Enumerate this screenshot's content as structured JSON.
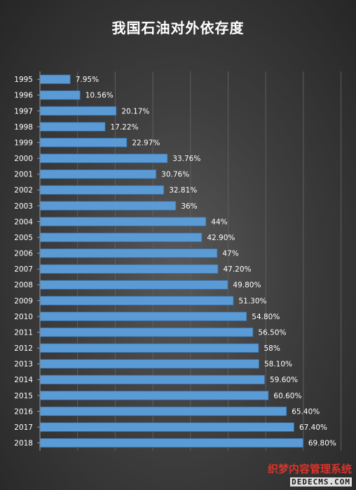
{
  "chart_data": {
    "type": "bar",
    "orientation": "horizontal",
    "title": "我国石油对外依存度",
    "categories": [
      "1995",
      "1996",
      "1997",
      "1998",
      "1999",
      "2000",
      "2001",
      "2002",
      "2003",
      "2004",
      "2005",
      "2006",
      "2007",
      "2008",
      "2009",
      "2010",
      "2011",
      "2012",
      "2013",
      "2014",
      "2015",
      "2016",
      "2017",
      "2018"
    ],
    "values": [
      7.95,
      10.56,
      20.17,
      17.22,
      22.97,
      33.76,
      30.76,
      32.81,
      36,
      44,
      42.9,
      47,
      47.2,
      49.8,
      51.3,
      54.8,
      56.5,
      58,
      58.1,
      59.6,
      60.6,
      65.4,
      67.4,
      69.8
    ],
    "labels": [
      "7.95%",
      "10.56%",
      "20.17%",
      "17.22%",
      "22.97%",
      "33.76%",
      "30.76%",
      "32.81%",
      "36%",
      "44%",
      "42.90%",
      "47%",
      "47.20%",
      "49.80%",
      "51.30%",
      "54.80%",
      "56.50%",
      "58%",
      "58.10%",
      "59.60%",
      "60.60%",
      "65.40%",
      "67.40%",
      "69.80%"
    ],
    "xlim": [
      0,
      80
    ],
    "grid": true,
    "bar_color": "#5b9bd5",
    "bar_edge_color": "#3a6fa8",
    "label_color": "#ffffff"
  },
  "watermark": {
    "text_cn": "织梦内容管理系统",
    "text_en": "DEDECMS.COM",
    "color": "#d9342b"
  }
}
